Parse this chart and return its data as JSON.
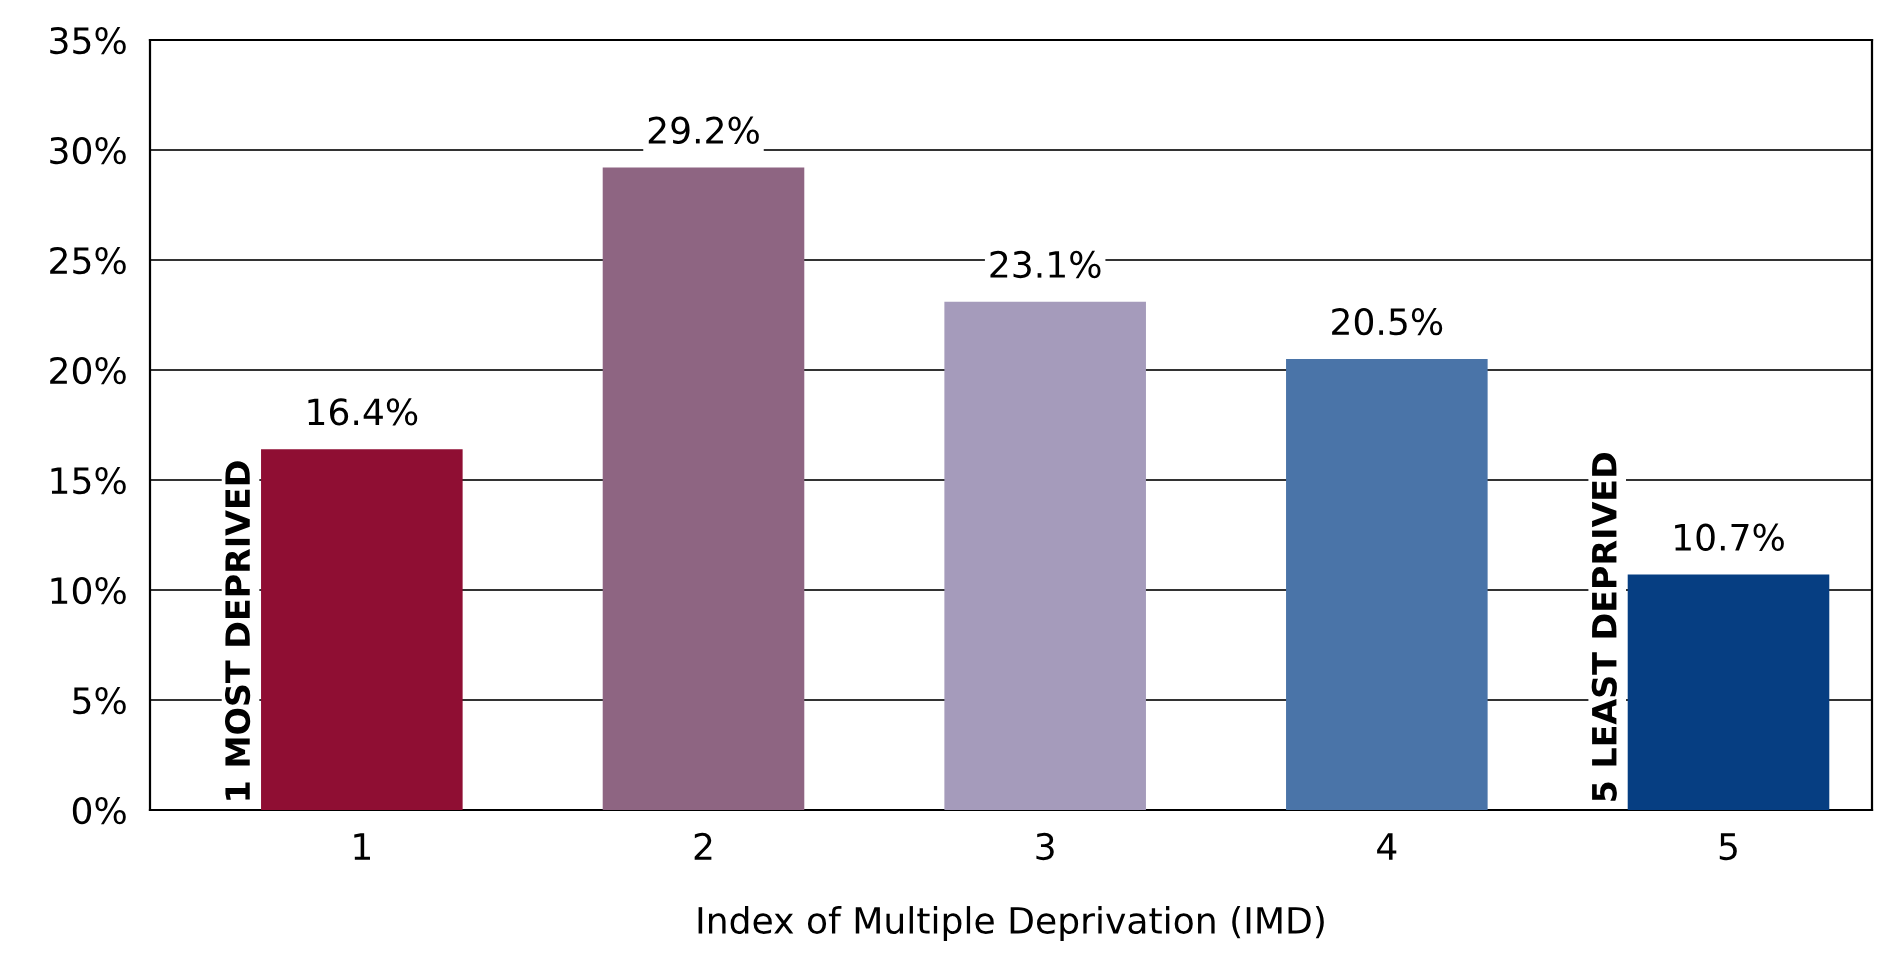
{
  "chart_data": {
    "type": "bar",
    "xlabel": "Index of Multiple Deprivation (IMD)",
    "categories": [
      "1",
      "2",
      "3",
      "4",
      "5"
    ],
    "values": [
      16.4,
      29.2,
      23.1,
      20.5,
      10.7
    ],
    "colors": [
      "#8f0e33",
      "#8e6582",
      "#a59bbb",
      "#4a74a8",
      "#063e82"
    ],
    "ylim": [
      0,
      35
    ],
    "yticks": [
      {
        "value": 0,
        "label": "0%"
      },
      {
        "value": 5,
        "label": "5%"
      },
      {
        "value": 10,
        "label": "10%"
      },
      {
        "value": 15,
        "label": "15%"
      },
      {
        "value": 20,
        "label": "20%"
      },
      {
        "value": 25,
        "label": "25%"
      },
      {
        "value": 30,
        "label": "30%"
      },
      {
        "value": 35,
        "label": "35%"
      }
    ],
    "grid": "y",
    "value_labels": [
      "16.4%",
      "29.2%",
      "23.1%",
      "20.5%",
      "10.7%"
    ],
    "annotations": [
      "1 MOST DEPRIVED",
      "5 LEAST DEPRIVED"
    ]
  }
}
